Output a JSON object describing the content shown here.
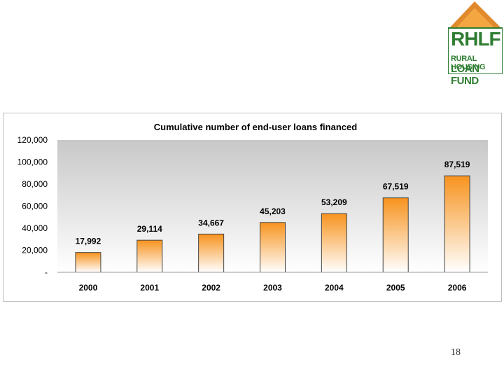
{
  "logo": {
    "name": "RHLF",
    "line1": "RURAL HOUSING",
    "line2": "LOAN FUND"
  },
  "chart_data": {
    "type": "bar",
    "title": "Cumulative number of end-user loans financed",
    "categories": [
      "2000",
      "2001",
      "2002",
      "2003",
      "2004",
      "2005",
      "2006"
    ],
    "values": [
      17992,
      29114,
      34667,
      45203,
      53209,
      67519,
      87519
    ],
    "value_labels": [
      "17,992",
      "29,114",
      "34,667",
      "45,203",
      "53,209",
      "67,519",
      "87,519"
    ],
    "ylim": [
      0,
      120000
    ],
    "yticks": [
      0,
      20000,
      40000,
      60000,
      80000,
      100000,
      120000
    ],
    "ytick_labels": [
      "-",
      "20,000",
      "40,000",
      "60,000",
      "80,000",
      "100,000",
      "120,000"
    ],
    "xlabel": "",
    "ylabel": "",
    "bar_color_top": "#f7931e",
    "bar_color_bottom": "#ffffff",
    "plot_bg_top": "#c8c8c8",
    "plot_bg_bottom": "#ffffff"
  },
  "page_number": "18"
}
